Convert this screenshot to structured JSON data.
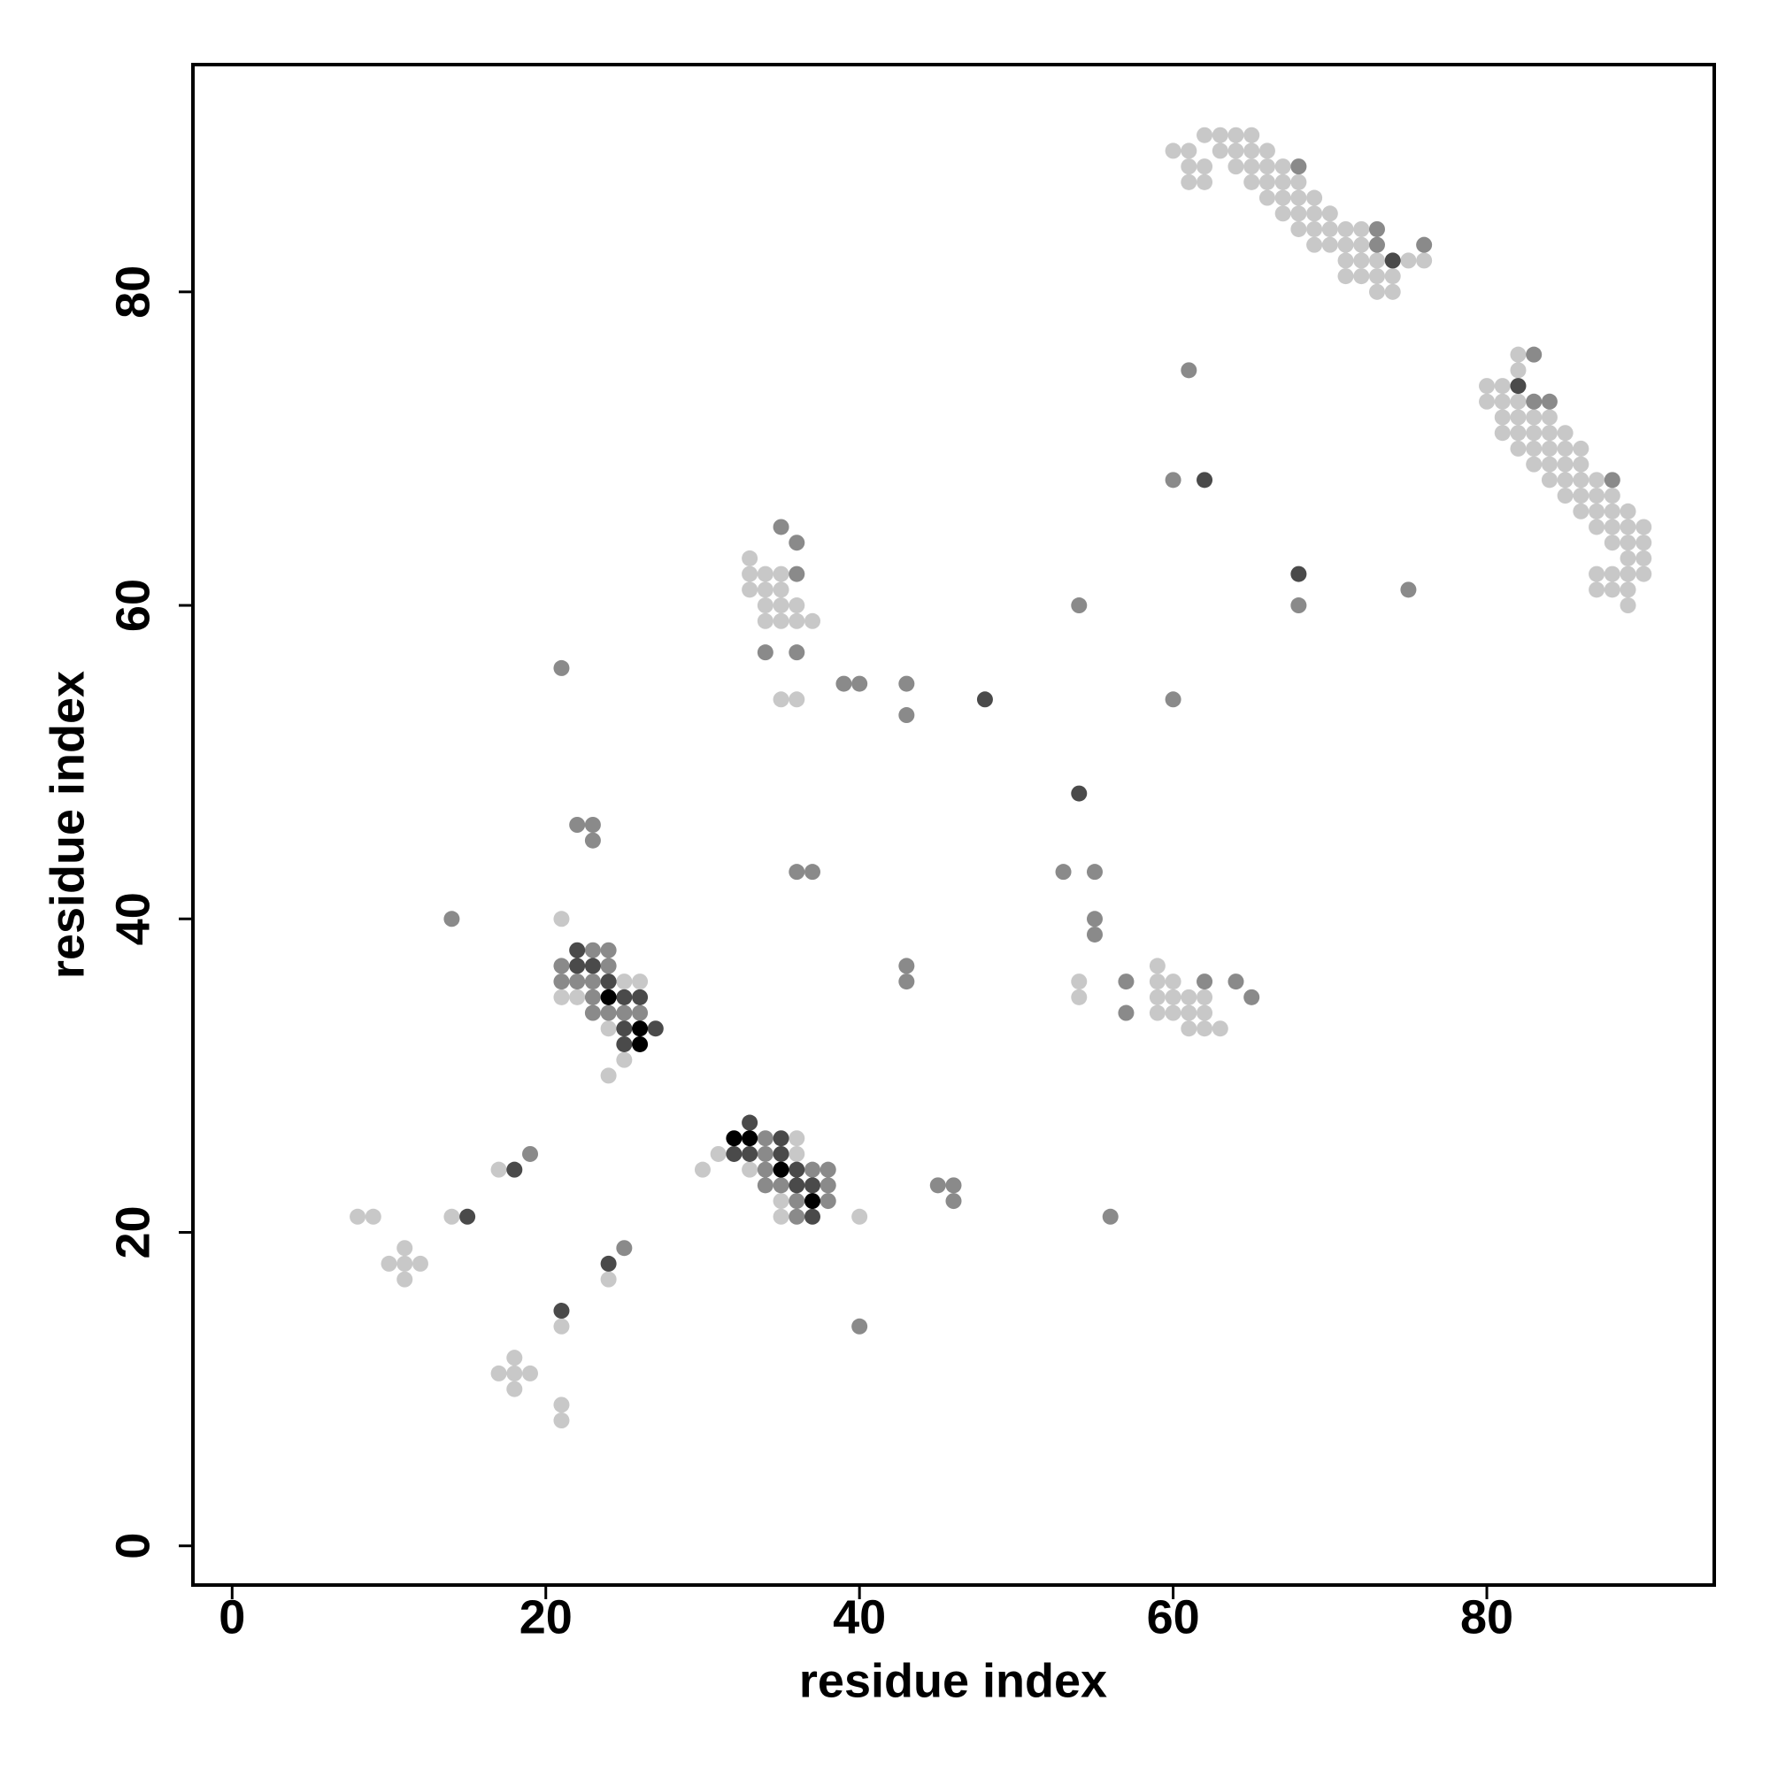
{
  "chart_data": {
    "type": "scatter",
    "x_label": "residue index",
    "y_label": "residue index",
    "xlim": [
      -2.5,
      94.5
    ],
    "ylim": [
      -2.5,
      94.5
    ],
    "xticks": [
      0,
      20,
      40,
      60,
      80
    ],
    "yticks": [
      0,
      20,
      40,
      60,
      80
    ],
    "grid": false,
    "series": [
      {
        "color": "#c8c8c8",
        "x": [
          62,
          63,
          64,
          65,
          60,
          61,
          63,
          64,
          65,
          66,
          61,
          62,
          64,
          65,
          66,
          67,
          61,
          62,
          65,
          66,
          67,
          68,
          66,
          67,
          68,
          69,
          67,
          68,
          69,
          70,
          68,
          69,
          70,
          71,
          72,
          69,
          70,
          71,
          72,
          71,
          72,
          73,
          75,
          76,
          71,
          72,
          73,
          74,
          73,
          74,
          82,
          82,
          80,
          81,
          80,
          81,
          82,
          81,
          82,
          83,
          84,
          81,
          82,
          83,
          84,
          85,
          82,
          83,
          84,
          85,
          86,
          83,
          84,
          85,
          86,
          84,
          85,
          86,
          87,
          85,
          86,
          87,
          88,
          86,
          87,
          88,
          89,
          87,
          88,
          89,
          90,
          88,
          89,
          90,
          89,
          90,
          87,
          88,
          89,
          90,
          87,
          88,
          89,
          89,
          33,
          33,
          34,
          35,
          33,
          34,
          35,
          34,
          35,
          36,
          34,
          35,
          36,
          37,
          35,
          36,
          21,
          25,
          26,
          21,
          22,
          24,
          25,
          24,
          59,
          54,
          59,
          60,
          54,
          59,
          60,
          61,
          62,
          59,
          60,
          61,
          62,
          61,
          62,
          63,
          36,
          31,
          36,
          30,
          33,
          35,
          35,
          40,
          17,
          8,
          9,
          14,
          11,
          10,
          11,
          12,
          11,
          24,
          21,
          18,
          17,
          18,
          19,
          18,
          21,
          21
        ],
        "y": [
          90,
          90,
          90,
          90,
          89,
          89,
          89,
          89,
          89,
          89,
          88,
          88,
          88,
          88,
          88,
          88,
          87,
          87,
          87,
          87,
          87,
          87,
          86,
          86,
          86,
          86,
          85,
          85,
          85,
          85,
          84,
          84,
          84,
          84,
          84,
          83,
          83,
          83,
          83,
          82,
          82,
          82,
          82,
          82,
          81,
          81,
          81,
          81,
          80,
          80,
          76,
          75,
          74,
          74,
          73,
          73,
          73,
          72,
          72,
          72,
          72,
          71,
          71,
          71,
          71,
          71,
          70,
          70,
          70,
          70,
          70,
          69,
          69,
          69,
          69,
          68,
          68,
          68,
          68,
          67,
          67,
          67,
          67,
          66,
          66,
          66,
          66,
          65,
          65,
          65,
          65,
          64,
          64,
          64,
          63,
          63,
          62,
          62,
          62,
          62,
          61,
          61,
          61,
          60,
          63,
          62,
          62,
          62,
          61,
          61,
          61,
          60,
          60,
          60,
          59,
          59,
          59,
          59,
          54,
          54,
          40,
          36,
          36,
          35,
          35,
          33,
          31,
          30,
          37,
          36,
          36,
          36,
          35,
          35,
          35,
          35,
          35,
          34,
          34,
          34,
          34,
          33,
          33,
          33,
          26,
          25,
          25,
          24,
          24,
          22,
          21,
          21,
          24,
          21,
          21,
          21,
          19,
          18,
          18,
          18,
          17,
          17,
          14,
          12,
          11,
          11,
          11,
          10,
          9,
          8
        ]
      },
      {
        "color": "#8a8a8a",
        "x": [
          68,
          73,
          73,
          76,
          83,
          83,
          84,
          88,
          75,
          61,
          60,
          68,
          54,
          60,
          53,
          55,
          55,
          55,
          43,
          43,
          39,
          40,
          35,
          36,
          36,
          34,
          36,
          21,
          22,
          23,
          23,
          36,
          37,
          14,
          23,
          24,
          21,
          24,
          21,
          22,
          23,
          23,
          23,
          24,
          25,
          26,
          57,
          62,
          64,
          65,
          57,
          43,
          43,
          34,
          34,
          34,
          37,
          38,
          34,
          35,
          38,
          36,
          38,
          36,
          45,
          46,
          46,
          56,
          40,
          19,
          25
        ],
        "y": [
          88,
          84,
          83,
          83,
          76,
          73,
          73,
          68,
          61,
          75,
          68,
          60,
          60,
          54,
          43,
          43,
          40,
          39,
          55,
          53,
          55,
          55,
          65,
          64,
          62,
          57,
          57,
          56,
          46,
          46,
          45,
          43,
          43,
          40,
          38,
          38,
          37,
          37,
          36,
          36,
          36,
          35,
          34,
          34,
          34,
          34,
          36,
          36,
          36,
          35,
          34,
          37,
          36,
          26,
          25,
          24,
          24,
          24,
          23,
          23,
          23,
          22,
          22,
          21,
          23,
          23,
          22,
          21,
          14,
          25,
          19
        ]
      },
      {
        "color": "#4a4a4a",
        "x": [
          74,
          82,
          62,
          68,
          48,
          54,
          22,
          22,
          23,
          24,
          25,
          26,
          25,
          27,
          25,
          33,
          35,
          32,
          33,
          35,
          36,
          36,
          37,
          37,
          18,
          15,
          24,
          21
        ],
        "y": [
          82,
          74,
          68,
          62,
          54,
          48,
          38,
          37,
          37,
          36,
          35,
          35,
          33,
          33,
          32,
          27,
          26,
          25,
          25,
          25,
          24,
          23,
          23,
          21,
          24,
          21,
          18,
          15
        ]
      },
      {
        "color": "#000000",
        "x": [
          24,
          26,
          26,
          32,
          33,
          35,
          37
        ],
        "y": [
          35,
          33,
          32,
          26,
          26,
          24,
          22
        ]
      }
    ]
  }
}
